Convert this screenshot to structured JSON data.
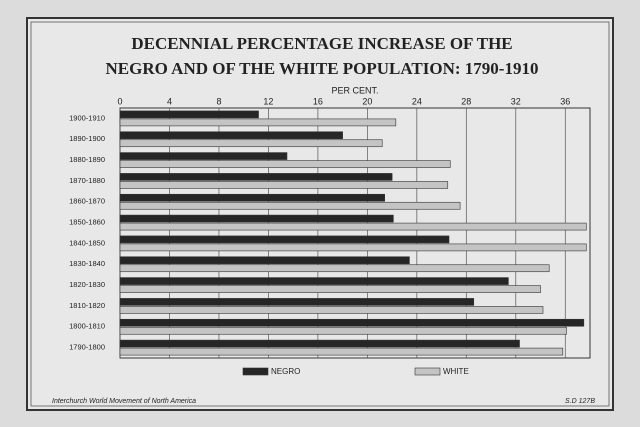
{
  "chart_data": {
    "type": "hbar",
    "title": "DECENNIAL PERCENTAGE INCREASE OF THE",
    "subtitle": "NEGRO AND OF THE WHITE POPULATION: 1790-1910",
    "x_label": "PER CENT.",
    "categories": [
      "1900-1910",
      "1890-1900",
      "1880-1890",
      "1870-1880",
      "1860-1870",
      "1850-1860",
      "1840-1850",
      "1830-1840",
      "1820-1830",
      "1810-1820",
      "1800-1810",
      "1790-1800"
    ],
    "series": [
      {
        "name": "NEGRO",
        "color": "#262626",
        "values": [
          11.2,
          18.0,
          13.5,
          22.0,
          21.4,
          22.1,
          26.6,
          23.4,
          31.4,
          28.6,
          37.5,
          32.3
        ]
      },
      {
        "name": "WHITE",
        "color": "#c4c4c4",
        "values": [
          22.3,
          21.2,
          26.7,
          26.5,
          27.5,
          37.7,
          37.7,
          34.7,
          34.0,
          34.2,
          36.1,
          35.8
        ]
      }
    ],
    "xlim": [
      0,
      38
    ],
    "xticks": [
      0,
      4,
      8,
      12,
      16,
      20,
      24,
      28,
      32,
      36
    ],
    "grid": true,
    "footer_left": "Interchurch World Movement of North America",
    "footer_right": "S.D 127B"
  }
}
